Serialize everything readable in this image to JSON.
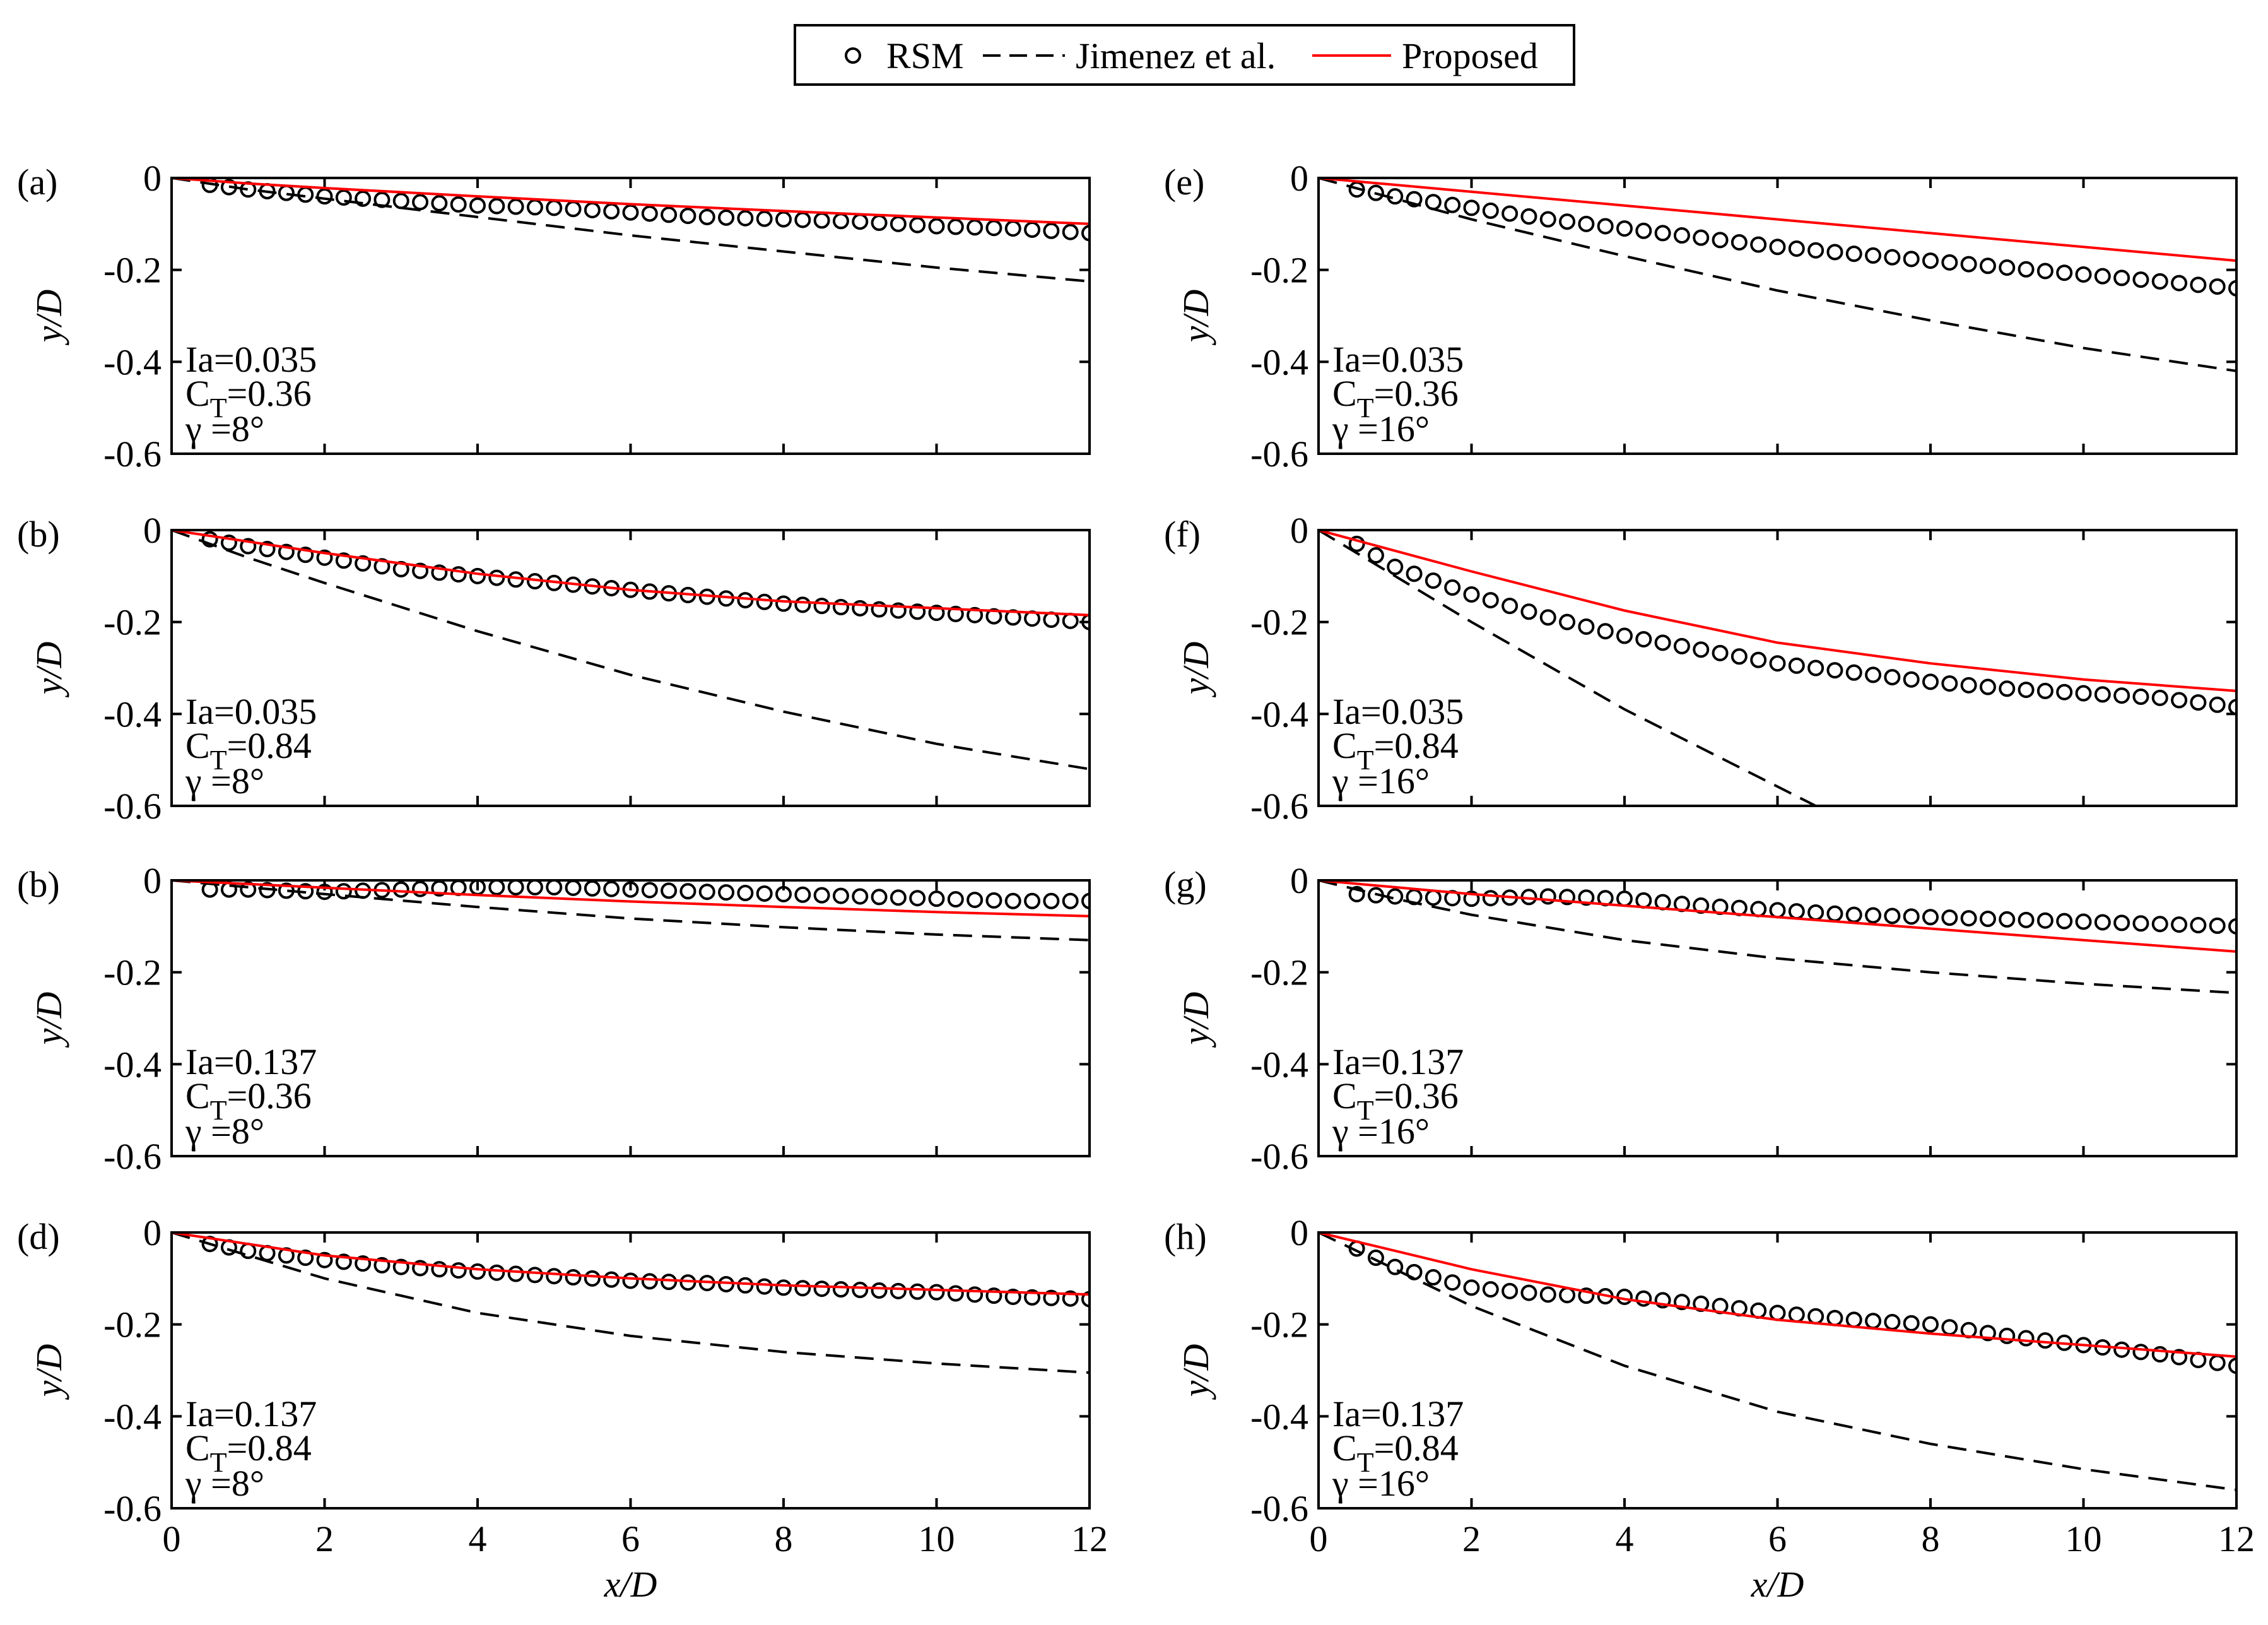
{
  "legend": {
    "entries": [
      {
        "label": "RSM",
        "style": "circle",
        "color": "#000000"
      },
      {
        "label": "Jimenez et al.",
        "style": "dashed",
        "color": "#000000"
      },
      {
        "label": "Proposed",
        "style": "solid",
        "color": "#ff0000"
      }
    ]
  },
  "colors": {
    "rsm": "#000000",
    "jimenez": "#000000",
    "proposed": "#ff0000"
  },
  "chart_data": [
    {
      "type": "line",
      "panel_label": "(a)",
      "xlabel": "x/D",
      "ylabel": "y/D",
      "xlim": [
        0,
        12
      ],
      "ylim": [
        -0.6,
        0
      ],
      "x_ticks": [
        "0",
        "2",
        "4",
        "6",
        "8",
        "10",
        "12"
      ],
      "y_ticks": [
        "0",
        "-0.2",
        "-0.4",
        "-0.6"
      ],
      "annotation": {
        "ia": "Ia=0.035",
        "ct_prefix": "C",
        "ct_sub": "T",
        "ct_value": "=0.36",
        "gamma": "γ =8°"
      },
      "series": [
        {
          "name": "RSM",
          "x": [
            0.5,
            1,
            2,
            3,
            4,
            5,
            6,
            7,
            8,
            9,
            10,
            11,
            12
          ],
          "y": [
            -0.015,
            -0.025,
            -0.04,
            -0.05,
            -0.06,
            -0.065,
            -0.075,
            -0.085,
            -0.09,
            -0.095,
            -0.105,
            -0.11,
            -0.12
          ]
        },
        {
          "name": "Jimenez et al.",
          "x": [
            0,
            1,
            2,
            4,
            6,
            8,
            10,
            12
          ],
          "y": [
            0,
            -0.025,
            -0.045,
            -0.085,
            -0.125,
            -0.16,
            -0.195,
            -0.225
          ]
        },
        {
          "name": "Proposed",
          "x": [
            0,
            1,
            2,
            4,
            6,
            8,
            10,
            12
          ],
          "y": [
            0,
            -0.012,
            -0.022,
            -0.04,
            -0.057,
            -0.072,
            -0.086,
            -0.1
          ]
        }
      ]
    },
    {
      "type": "line",
      "panel_label": "(b)",
      "xlabel": "x/D",
      "ylabel": "y/D",
      "xlim": [
        0,
        12
      ],
      "ylim": [
        -0.6,
        0
      ],
      "x_ticks": [
        "0",
        "2",
        "4",
        "6",
        "8",
        "10",
        "12"
      ],
      "y_ticks": [
        "0",
        "-0.2",
        "-0.4",
        "-0.6"
      ],
      "annotation": {
        "ia": "Ia=0.035",
        "ct_prefix": "C",
        "ct_sub": "T",
        "ct_value": "=0.84",
        "gamma": "γ =8°"
      },
      "series": [
        {
          "name": "RSM",
          "x": [
            0.5,
            1,
            2,
            3,
            4,
            5,
            6,
            7,
            8,
            9,
            10,
            11,
            12
          ],
          "y": [
            -0.02,
            -0.035,
            -0.06,
            -0.085,
            -0.1,
            -0.115,
            -0.13,
            -0.145,
            -0.16,
            -0.17,
            -0.18,
            -0.19,
            -0.2
          ]
        },
        {
          "name": "Jimenez et al.",
          "x": [
            0,
            1,
            2,
            4,
            6,
            8,
            10,
            12
          ],
          "y": [
            0,
            -0.06,
            -0.115,
            -0.22,
            -0.315,
            -0.395,
            -0.465,
            -0.52
          ]
        },
        {
          "name": "Proposed",
          "x": [
            0,
            1,
            2,
            4,
            6,
            8,
            10,
            12
          ],
          "y": [
            0,
            -0.025,
            -0.05,
            -0.095,
            -0.13,
            -0.155,
            -0.17,
            -0.185
          ]
        }
      ]
    },
    {
      "type": "line",
      "panel_label": "(b)",
      "xlabel": "x/D",
      "ylabel": "y/D",
      "xlim": [
        0,
        12
      ],
      "ylim": [
        -0.6,
        0
      ],
      "x_ticks": [
        "0",
        "2",
        "4",
        "6",
        "8",
        "10",
        "12"
      ],
      "y_ticks": [
        "0",
        "-0.2",
        "-0.4",
        "-0.6"
      ],
      "annotation": {
        "ia": "Ia=0.137",
        "ct_prefix": "C",
        "ct_sub": "T",
        "ct_value": "=0.36",
        "gamma": "γ =8°"
      },
      "series": [
        {
          "name": "RSM",
          "x": [
            0.5,
            1,
            2,
            3,
            4,
            5,
            6,
            7,
            8,
            9,
            10,
            11,
            12
          ],
          "y": [
            -0.02,
            -0.02,
            -0.025,
            -0.02,
            -0.015,
            -0.015,
            -0.02,
            -0.025,
            -0.03,
            -0.035,
            -0.04,
            -0.045,
            -0.045
          ]
        },
        {
          "name": "Jimenez et al.",
          "x": [
            0,
            1,
            2,
            4,
            6,
            8,
            10,
            12
          ],
          "y": [
            0,
            -0.015,
            -0.03,
            -0.058,
            -0.083,
            -0.102,
            -0.118,
            -0.13
          ]
        },
        {
          "name": "Proposed",
          "x": [
            0,
            1,
            2,
            4,
            6,
            8,
            10,
            12
          ],
          "y": [
            0,
            -0.008,
            -0.016,
            -0.032,
            -0.046,
            -0.058,
            -0.069,
            -0.078
          ]
        }
      ]
    },
    {
      "type": "line",
      "panel_label": "(d)",
      "xlabel": "x/D",
      "ylabel": "y/D",
      "xlim": [
        0,
        12
      ],
      "ylim": [
        -0.6,
        0
      ],
      "x_ticks": [
        "0",
        "2",
        "4",
        "6",
        "8",
        "10",
        "12"
      ],
      "y_ticks": [
        "0",
        "-0.2",
        "-0.4",
        "-0.6"
      ],
      "annotation": {
        "ia": "Ia=0.137",
        "ct_prefix": "C",
        "ct_sub": "T",
        "ct_value": "=0.84",
        "gamma": "γ =8°"
      },
      "series": [
        {
          "name": "RSM",
          "x": [
            0.5,
            1,
            2,
            3,
            4,
            5,
            6,
            7,
            8,
            9,
            10,
            11,
            12
          ],
          "y": [
            -0.025,
            -0.04,
            -0.06,
            -0.075,
            -0.085,
            -0.095,
            -0.105,
            -0.11,
            -0.12,
            -0.125,
            -0.13,
            -0.14,
            -0.145
          ]
        },
        {
          "name": "Jimenez et al.",
          "x": [
            0,
            1,
            2,
            4,
            6,
            8,
            10,
            12
          ],
          "y": [
            0,
            -0.05,
            -0.1,
            -0.175,
            -0.225,
            -0.26,
            -0.285,
            -0.305
          ]
        },
        {
          "name": "Proposed",
          "x": [
            0,
            1,
            2,
            4,
            6,
            8,
            10,
            12
          ],
          "y": [
            0,
            -0.025,
            -0.05,
            -0.08,
            -0.1,
            -0.115,
            -0.125,
            -0.135
          ]
        }
      ]
    },
    {
      "type": "line",
      "panel_label": "(e)",
      "xlabel": "x/D",
      "ylabel": "y/D",
      "xlim": [
        0,
        12
      ],
      "ylim": [
        -0.6,
        0
      ],
      "x_ticks": [
        "0",
        "2",
        "4",
        "6",
        "8",
        "10",
        "12"
      ],
      "y_ticks": [
        "0",
        "-0.2",
        "-0.4",
        "-0.6"
      ],
      "annotation": {
        "ia": "Ia=0.035",
        "ct_prefix": "C",
        "ct_sub": "T",
        "ct_value": "=0.36",
        "gamma": "γ =16°"
      },
      "series": [
        {
          "name": "RSM",
          "x": [
            0.5,
            1,
            2,
            3,
            4,
            5,
            6,
            7,
            8,
            9,
            10,
            11,
            12
          ],
          "y": [
            -0.025,
            -0.04,
            -0.065,
            -0.09,
            -0.11,
            -0.13,
            -0.15,
            -0.165,
            -0.18,
            -0.195,
            -0.21,
            -0.225,
            -0.24
          ]
        },
        {
          "name": "Jimenez et al.",
          "x": [
            0,
            1,
            2,
            4,
            6,
            8,
            10,
            12
          ],
          "y": [
            0,
            -0.045,
            -0.09,
            -0.17,
            -0.245,
            -0.31,
            -0.37,
            -0.42
          ]
        },
        {
          "name": "Proposed",
          "x": [
            0,
            1,
            2,
            4,
            6,
            8,
            10,
            12
          ],
          "y": [
            0,
            -0.015,
            -0.03,
            -0.06,
            -0.09,
            -0.12,
            -0.15,
            -0.18
          ]
        }
      ]
    },
    {
      "type": "line",
      "panel_label": "(f)",
      "xlabel": "x/D",
      "ylabel": "y/D",
      "xlim": [
        0,
        12
      ],
      "ylim": [
        -0.6,
        0
      ],
      "x_ticks": [
        "0",
        "2",
        "4",
        "6",
        "8",
        "10",
        "12"
      ],
      "y_ticks": [
        "0",
        "-0.2",
        "-0.4",
        "-0.6"
      ],
      "annotation": {
        "ia": "Ia=0.035",
        "ct_prefix": "C",
        "ct_sub": "T",
        "ct_value": "=0.84",
        "gamma": "γ =16°"
      },
      "series": [
        {
          "name": "RSM",
          "x": [
            0.5,
            1,
            2,
            3,
            4,
            5,
            6,
            7,
            8,
            9,
            10,
            11,
            12
          ],
          "y": [
            -0.03,
            -0.08,
            -0.14,
            -0.19,
            -0.23,
            -0.26,
            -0.29,
            -0.31,
            -0.33,
            -0.345,
            -0.355,
            -0.365,
            -0.385
          ]
        },
        {
          "name": "Jimenez et al.",
          "x": [
            0,
            1,
            2,
            4,
            6.5
          ],
          "y": [
            0,
            -0.1,
            -0.2,
            -0.39,
            -0.6
          ]
        },
        {
          "name": "Proposed",
          "x": [
            0,
            1,
            2,
            4,
            6,
            8,
            10,
            12
          ],
          "y": [
            0,
            -0.045,
            -0.09,
            -0.175,
            -0.245,
            -0.29,
            -0.325,
            -0.35
          ]
        }
      ]
    },
    {
      "type": "line",
      "panel_label": "(g)",
      "xlabel": "x/D",
      "ylabel": "y/D",
      "xlim": [
        0,
        12
      ],
      "ylim": [
        -0.6,
        0
      ],
      "x_ticks": [
        "0",
        "2",
        "4",
        "6",
        "8",
        "10",
        "12"
      ],
      "y_ticks": [
        "0",
        "-0.2",
        "-0.4",
        "-0.6"
      ],
      "annotation": {
        "ia": "Ia=0.137",
        "ct_prefix": "C",
        "ct_sub": "T",
        "ct_value": "=0.36",
        "gamma": "γ =16°"
      },
      "series": [
        {
          "name": "RSM",
          "x": [
            0.5,
            1,
            2,
            3,
            4,
            5,
            6,
            7,
            8,
            9,
            10,
            11,
            12
          ],
          "y": [
            -0.03,
            -0.035,
            -0.04,
            -0.035,
            -0.04,
            -0.055,
            -0.065,
            -0.075,
            -0.08,
            -0.085,
            -0.09,
            -0.095,
            -0.1
          ]
        },
        {
          "name": "Jimenez et al.",
          "x": [
            0,
            1,
            2,
            4,
            6,
            8,
            10,
            12
          ],
          "y": [
            0,
            -0.04,
            -0.075,
            -0.13,
            -0.17,
            -0.2,
            -0.225,
            -0.245
          ]
        },
        {
          "name": "Proposed",
          "x": [
            0,
            1,
            2,
            4,
            6,
            8,
            10,
            12
          ],
          "y": [
            0,
            -0.015,
            -0.03,
            -0.055,
            -0.08,
            -0.105,
            -0.13,
            -0.155
          ]
        }
      ]
    },
    {
      "type": "line",
      "panel_label": "(h)",
      "xlabel": "x/D",
      "ylabel": "y/D",
      "xlim": [
        0,
        12
      ],
      "ylim": [
        -0.6,
        0
      ],
      "x_ticks": [
        "0",
        "2",
        "4",
        "6",
        "8",
        "10",
        "12"
      ],
      "y_ticks": [
        "0",
        "-0.2",
        "-0.4",
        "-0.6"
      ],
      "annotation": {
        "ia": "Ia=0.137",
        "ct_prefix": "C",
        "ct_sub": "T",
        "ct_value": "=0.84",
        "gamma": "γ =16°"
      },
      "series": [
        {
          "name": "RSM",
          "x": [
            0.5,
            1,
            2,
            3,
            4,
            5,
            6,
            7,
            8,
            9,
            10,
            11,
            12
          ],
          "y": [
            -0.035,
            -0.075,
            -0.12,
            -0.135,
            -0.14,
            -0.155,
            -0.175,
            -0.19,
            -0.2,
            -0.225,
            -0.245,
            -0.265,
            -0.29
          ]
        },
        {
          "name": "Jimenez et al.",
          "x": [
            0,
            1,
            2,
            4,
            6,
            8,
            10,
            12
          ],
          "y": [
            0,
            -0.08,
            -0.16,
            -0.29,
            -0.39,
            -0.46,
            -0.515,
            -0.56
          ]
        },
        {
          "name": "Proposed",
          "x": [
            0,
            1,
            2,
            4,
            6,
            8,
            10,
            12
          ],
          "y": [
            0,
            -0.04,
            -0.08,
            -0.145,
            -0.19,
            -0.22,
            -0.245,
            -0.27
          ]
        }
      ]
    }
  ]
}
